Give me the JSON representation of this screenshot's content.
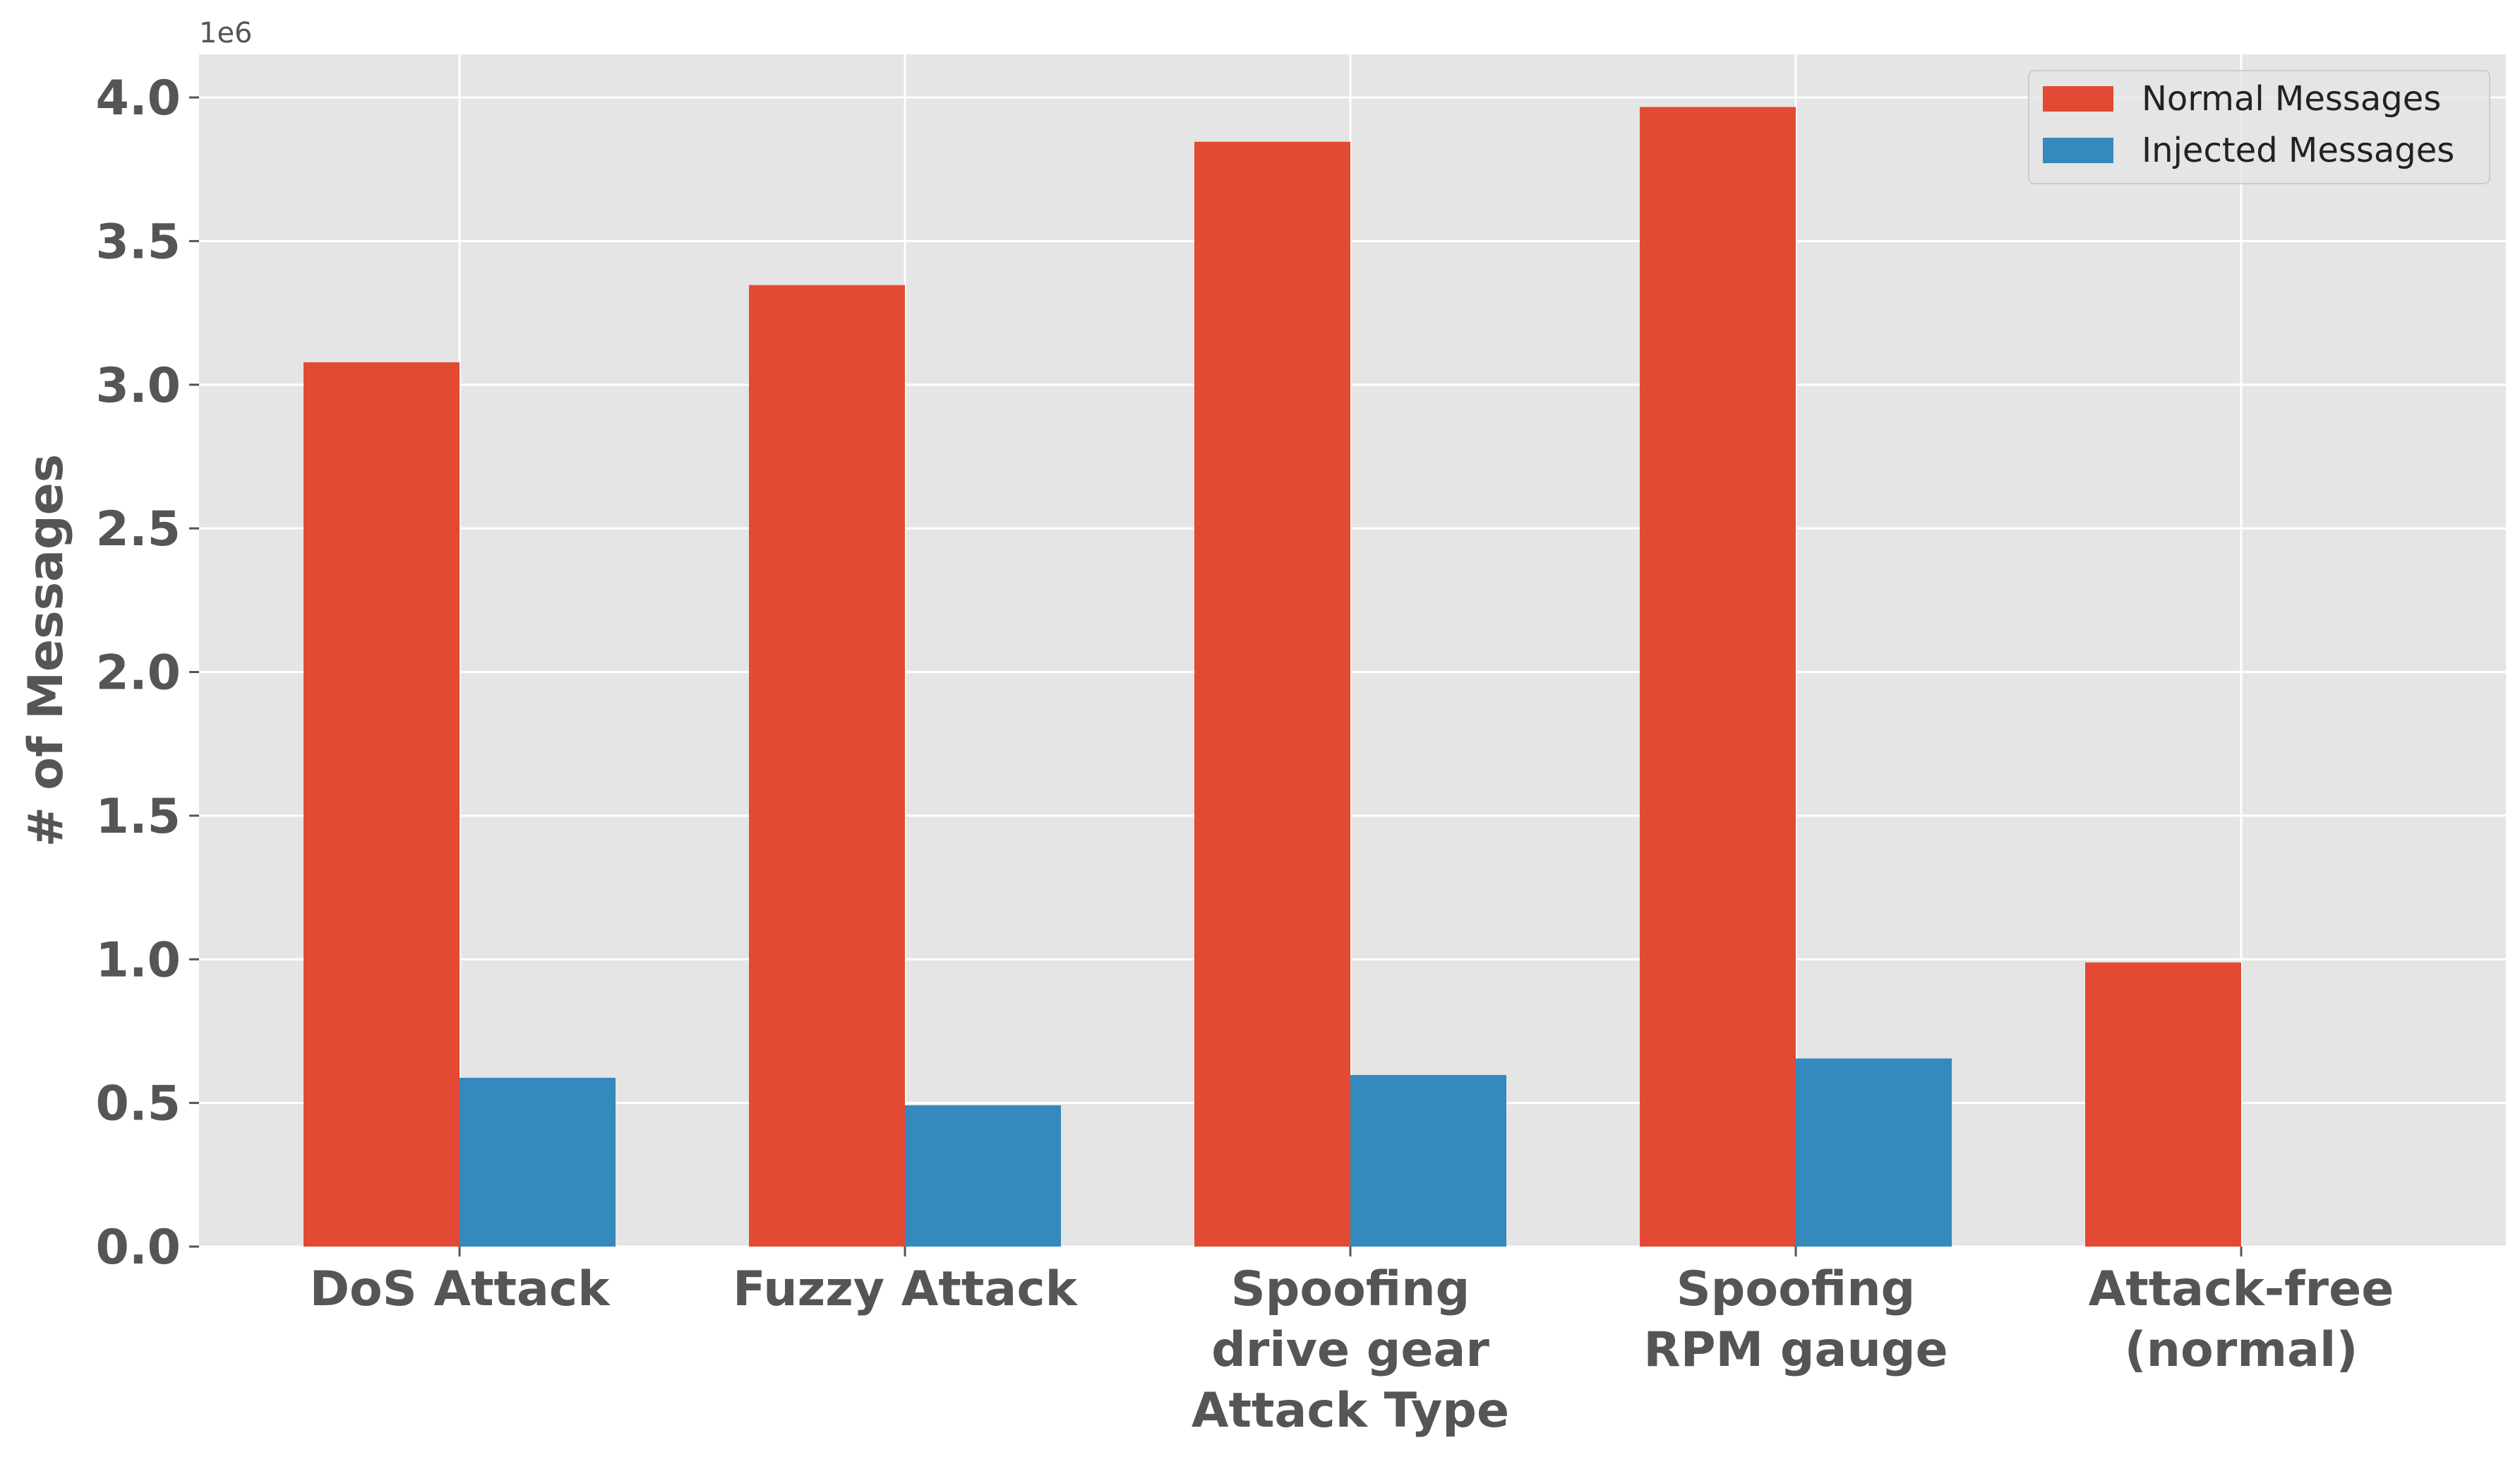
{
  "chart_data": {
    "type": "bar",
    "title": "",
    "xlabel": "Attack Type",
    "ylabel": "# of Messages",
    "y_offset_label": "1e6",
    "categories": [
      [
        "DoS Attack"
      ],
      [
        "Fuzzy Attack"
      ],
      [
        "Spoofing",
        "drive gear"
      ],
      [
        "Spoofing",
        "RPM gauge"
      ],
      [
        "Attack-free",
        "(normal)"
      ]
    ],
    "series": [
      {
        "name": "Normal Messages",
        "color": "#E24A33",
        "values": [
          3078250,
          3347013,
          3845890,
          3966805,
          988987
        ]
      },
      {
        "name": "Injected Messages",
        "color": "#348ABD",
        "values": [
          587521,
          491847,
          597252,
          654897,
          0
        ]
      }
    ],
    "ylim": [
      0,
      4150000
    ],
    "yticks": [
      0,
      500000,
      1000000,
      1500000,
      2000000,
      2500000,
      3000000,
      3500000,
      4000000
    ],
    "ytick_labels": [
      "0.0",
      "0.5",
      "1.0",
      "1.5",
      "2.0",
      "2.5",
      "3.0",
      "3.5",
      "4.0"
    ],
    "grid": true,
    "legend_position": "top-right",
    "style": {
      "plot_background": "#E5E5E5",
      "grid_color": "#FFFFFF",
      "text_color": "#555555"
    }
  }
}
